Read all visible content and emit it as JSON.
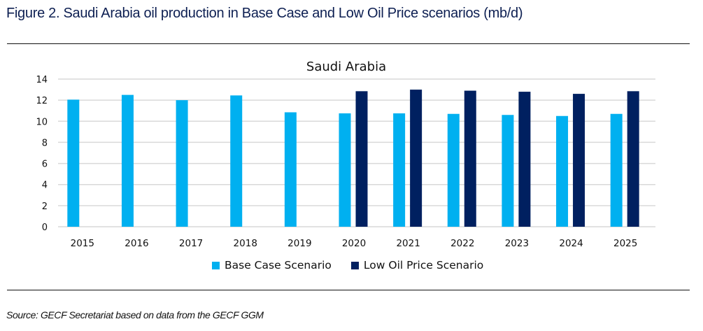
{
  "figure": {
    "title": "Figure 2. Saudi Arabia oil production in Base Case and Low Oil Price scenarios (mb/d)",
    "source": "Source: GECF Secretariat based on data from the GECF GGM"
  },
  "colors": {
    "base_case": "#00b0f0",
    "low_oil_price": "#002060",
    "gridline": "#d9d9d9",
    "title": "#0d1f52"
  },
  "chart_data": {
    "type": "bar",
    "title": "Saudi Arabia",
    "xlabel": "",
    "ylabel": "",
    "categories": [
      "2015",
      "2016",
      "2017",
      "2018",
      "2019",
      "2020",
      "2021",
      "2022",
      "2023",
      "2024",
      "2025"
    ],
    "series": [
      {
        "name": "Base Case Scenario",
        "color": "#00b0f0",
        "values": [
          12.05,
          12.5,
          12.0,
          12.45,
          10.85,
          10.75,
          10.75,
          10.7,
          10.6,
          10.5,
          10.7
        ]
      },
      {
        "name": "Low Oil Price Scenario",
        "color": "#002060",
        "values": [
          null,
          null,
          null,
          null,
          null,
          12.85,
          13.0,
          12.9,
          12.8,
          12.6,
          12.85
        ]
      }
    ],
    "ylim": [
      0,
      14
    ],
    "yticks": [
      0,
      2,
      4,
      6,
      8,
      10,
      12,
      14
    ],
    "grid": true,
    "legend_position": "bottom"
  }
}
